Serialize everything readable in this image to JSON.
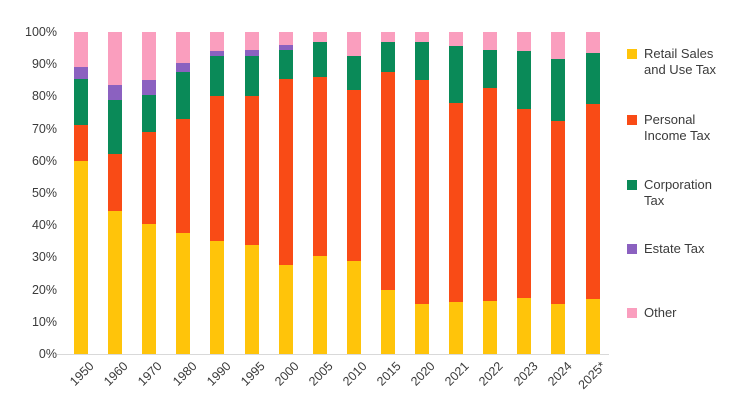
{
  "chart_data": {
    "type": "bar",
    "stacked": true,
    "percent": true,
    "title": "",
    "xlabel": "",
    "ylabel": "",
    "grid": false,
    "legend_position": "right",
    "categories": [
      "1950",
      "1960",
      "1970",
      "1980",
      "1990",
      "1995",
      "2000",
      "2005",
      "2010",
      "2015",
      "2020",
      "2021",
      "2022",
      "2023",
      "2024",
      "2025*"
    ],
    "series": [
      {
        "name": "Retail Sales and Use Tax",
        "legend_lines": [
          "Retail Sales",
          "and Use Tax"
        ],
        "color": "#FFC40A",
        "values": [
          60,
          44.5,
          40.5,
          37.5,
          35,
          34,
          27.5,
          30.5,
          29,
          20,
          15.5,
          16,
          16.5,
          17.5,
          15.5,
          17
        ]
      },
      {
        "name": "Personal Income Tax",
        "legend_lines": [
          "Personal",
          "Income Tax"
        ],
        "color": "#F94B16",
        "values": [
          11,
          17.5,
          28.5,
          35.5,
          45,
          46,
          58,
          55.5,
          53,
          67.5,
          69.5,
          62,
          66,
          58.5,
          57,
          60.5
        ]
      },
      {
        "name": "Corporation Tax",
        "legend_lines": [
          "Corporation",
          "Tax"
        ],
        "color": "#0A8A58",
        "values": [
          14.5,
          17,
          11.5,
          14.5,
          12.5,
          12.5,
          9,
          11,
          10.5,
          9.5,
          12,
          17.5,
          12,
          18,
          19,
          16
        ]
      },
      {
        "name": "Estate Tax",
        "legend_lines": [
          "Estate Tax"
        ],
        "color": "#8B61C0",
        "values": [
          3.5,
          4.5,
          4.5,
          3,
          1.5,
          2,
          1.5,
          0,
          0,
          0,
          0,
          0,
          0,
          0,
          0,
          0
        ]
      },
      {
        "name": "Other",
        "legend_lines": [
          "Other"
        ],
        "color": "#FA9EBE",
        "values": [
          11,
          16.5,
          15,
          9.5,
          6,
          5.5,
          4,
          3,
          7.5,
          3,
          3,
          4.5,
          5.5,
          6,
          8.5,
          6.5
        ]
      }
    ],
    "y_axis": {
      "min": 0,
      "max": 100,
      "tick_step": 10,
      "ticks": [
        "0%",
        "10%",
        "20%",
        "30%",
        "40%",
        "50%",
        "60%",
        "70%",
        "80%",
        "90%",
        "100%"
      ]
    }
  },
  "styles": {
    "text_color": "#3b3b3b",
    "axis_line_color": "#d9d9d9",
    "background": "#ffffff"
  }
}
